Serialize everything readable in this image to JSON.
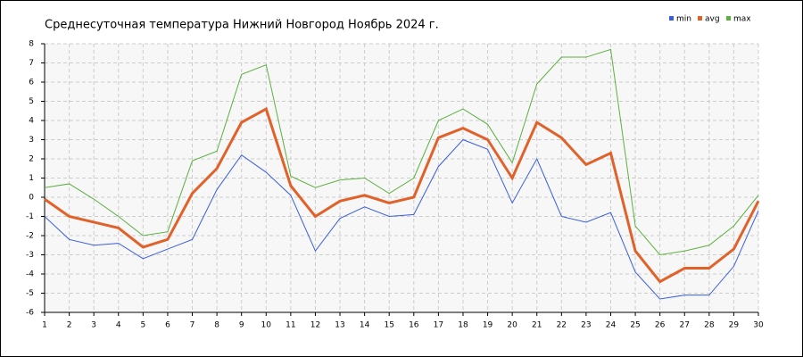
{
  "chart_data": {
    "type": "line",
    "title": "Среднесуточная температура Нижний Новгород  Ноябрь 2024 г.",
    "x": [
      1,
      2,
      3,
      4,
      5,
      6,
      7,
      8,
      9,
      10,
      11,
      12,
      13,
      14,
      15,
      16,
      17,
      18,
      19,
      20,
      21,
      22,
      23,
      24,
      25,
      26,
      27,
      28,
      29,
      30
    ],
    "xlim": [
      1,
      30
    ],
    "xticks": [
      1,
      2,
      3,
      4,
      5,
      6,
      7,
      8,
      9,
      10,
      11,
      12,
      13,
      14,
      15,
      16,
      17,
      18,
      19,
      20,
      21,
      22,
      23,
      24,
      25,
      26,
      27,
      28,
      29,
      30
    ],
    "ylim": [
      -6,
      8
    ],
    "yticks": [
      -6,
      -5,
      -4,
      -3,
      -2,
      -1,
      0,
      1,
      2,
      3,
      4,
      5,
      6,
      7,
      8
    ],
    "grid": true,
    "legend": "top-right",
    "series": [
      {
        "name": "min",
        "color": "#3a5fd9",
        "values": [
          -1.0,
          -2.2,
          -2.5,
          -2.4,
          -3.2,
          -2.7,
          -2.2,
          0.4,
          2.2,
          1.3,
          0.1,
          -2.8,
          -1.1,
          -0.5,
          -1.0,
          -0.9,
          1.6,
          3.0,
          2.5,
          -0.3,
          2.0,
          -1.0,
          -1.3,
          -0.8,
          -3.9,
          -5.3,
          -5.1,
          -5.1,
          -3.6,
          -0.7
        ]
      },
      {
        "name": "avg",
        "color": "#e0622a",
        "values": [
          -0.1,
          -1.0,
          -1.3,
          -1.6,
          -2.6,
          -2.2,
          0.2,
          1.5,
          3.9,
          4.6,
          0.6,
          -1.0,
          -0.2,
          0.1,
          -0.3,
          0.0,
          3.1,
          3.6,
          3.0,
          1.0,
          3.9,
          3.1,
          1.7,
          2.3,
          -2.8,
          -4.4,
          -3.7,
          -3.7,
          -2.7,
          -0.2
        ]
      },
      {
        "name": "max",
        "color": "#5cb040",
        "values": [
          0.5,
          0.7,
          -0.1,
          -1.0,
          -2.0,
          -1.8,
          1.9,
          2.4,
          6.4,
          6.9,
          1.1,
          0.5,
          0.9,
          1.0,
          0.2,
          1.0,
          4.0,
          4.6,
          3.8,
          1.8,
          5.9,
          7.3,
          7.3,
          7.7,
          -1.5,
          -3.0,
          -2.8,
          -2.5,
          -1.5,
          0.1
        ]
      }
    ]
  }
}
